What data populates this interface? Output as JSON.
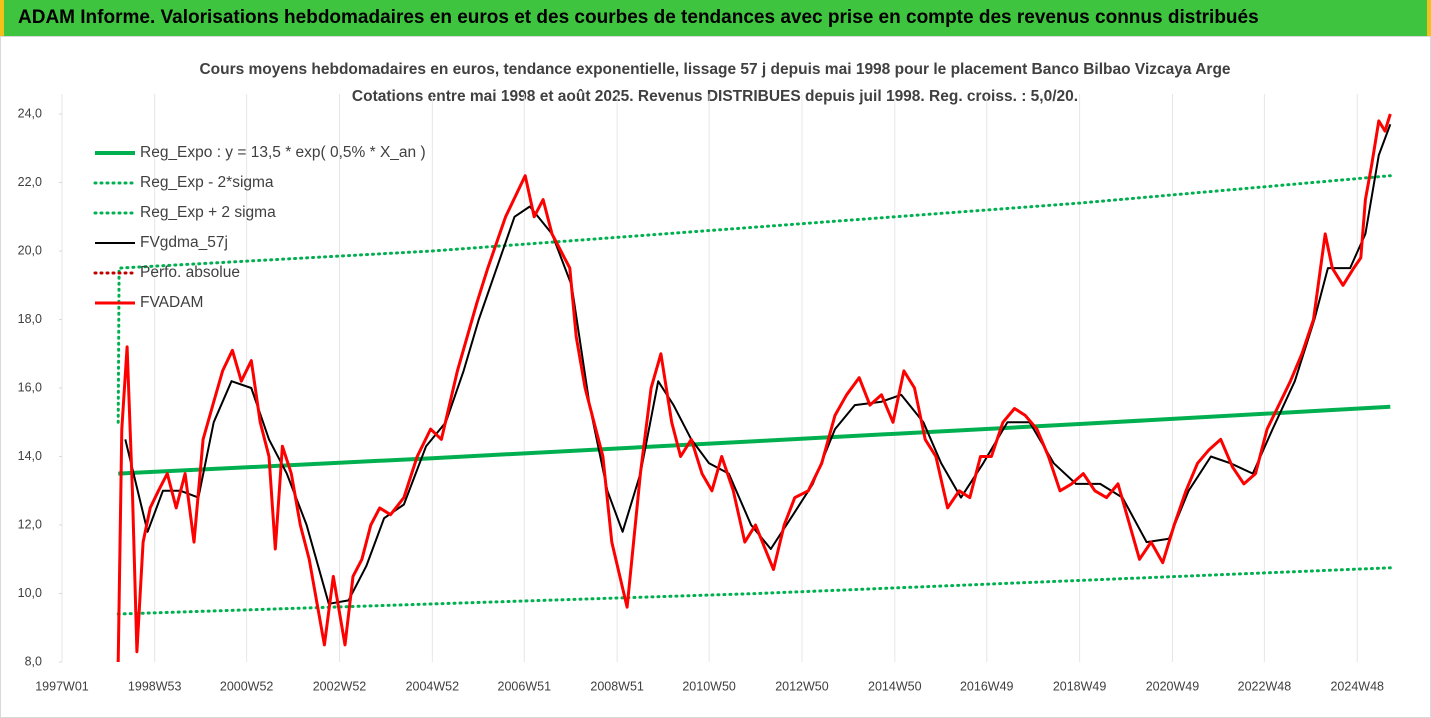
{
  "header": {
    "title": "ADAM Informe. Valorisations hebdomadaires en euros et des courbes de tendances avec prise en compte des revenus connus distribués"
  },
  "chart_data": {
    "type": "line",
    "title": "Cours moyens hebdomadaires en euros, tendance exponentielle, lissage 57 j depuis mai 1998 pour le placement Banco Bilbao Vizcaya Arge",
    "subtitle": "Cotations entre mai 1998 et août 2025. Revenus DISTRIBUES depuis juil 1998. Reg. croiss. : 5,0/20.",
    "xlim": [
      "1997W01",
      "2025W36"
    ],
    "xticks": [
      "1997W01",
      "1998W53",
      "2000W52",
      "2002W52",
      "2004W52",
      "2006W51",
      "2008W51",
      "2010W50",
      "2012W50",
      "2014W50",
      "2016W49",
      "2018W49",
      "2020W49",
      "2022W48",
      "2024W48"
    ],
    "ylim": [
      8,
      24
    ],
    "yticks": [
      {
        "value": 8,
        "label": "8,0"
      },
      {
        "value": 10,
        "label": "10,0"
      },
      {
        "value": 12,
        "label": "12,0"
      },
      {
        "value": 14,
        "label": "14,0"
      },
      {
        "value": 16,
        "label": "16,0"
      },
      {
        "value": 18,
        "label": "18,0"
      },
      {
        "value": 20,
        "label": "20,0"
      },
      {
        "value": 22,
        "label": "22,0"
      },
      {
        "value": 24,
        "label": "24,0"
      }
    ],
    "grid": "x",
    "legend": "upper left",
    "series": [
      {
        "name": "Reg_Expo : y = 13,5 * exp( 0,5% *  X_an )",
        "color": "#00b050",
        "style": "solid",
        "x": [
          "1998W12",
          "2004W52",
          "2011W52",
          "2018W49",
          "2025W33"
        ],
        "values": [
          13.5,
          13.95,
          14.45,
          14.95,
          15.45
        ]
      },
      {
        "name": "Reg_Exp - 2*sigma",
        "color": "#00b050",
        "style": "dotted",
        "x": [
          "1998W12",
          "2011W52",
          "2025W33"
        ],
        "values": [
          9.4,
          10.0,
          10.75
        ]
      },
      {
        "name": "Reg_Exp + 2 sigma",
        "color": "#00b050",
        "style": "dotted",
        "x": [
          "1998W12",
          "1998W13",
          "2004W52",
          "2011W52",
          "2018W49",
          "2025W33"
        ],
        "values": [
          15.0,
          19.5,
          20.0,
          20.7,
          21.4,
          22.2
        ]
      },
      {
        "name": "FVgdma_57j",
        "color": "#000000",
        "style": "solid",
        "x": [
          "1998W20",
          "1998W45",
          "1999W10",
          "1999W30",
          "1999W50",
          "2000W15",
          "2000W35",
          "2001W05",
          "2001W25",
          "2001W45",
          "2002W15",
          "2002W40",
          "2003W10",
          "2003W30",
          "2003W50",
          "2004W20",
          "2004W45",
          "2005W15",
          "2005W35",
          "2005W52",
          "2006W20",
          "2006W40",
          "2007W05",
          "2007W30",
          "2007W52",
          "2008W20",
          "2008W40",
          "2009W05",
          "2009W25",
          "2009W45",
          "2010W10",
          "2010W30",
          "2010W50",
          "2011W20",
          "2011W45",
          "2012W15",
          "2012W40",
          "2013W10",
          "2013W35",
          "2014W05",
          "2014W35",
          "2015W05",
          "2015W30",
          "2015W50",
          "2016W20",
          "2016W45",
          "2017W20",
          "2017W45",
          "2018W20",
          "2018W45",
          "2019W20",
          "2019W45",
          "2020W20",
          "2020W45",
          "2021W15",
          "2021W40",
          "2022W10",
          "2022W35",
          "2023W05",
          "2023W30",
          "2023W52",
          "2024W15",
          "2024W40",
          "2025W05",
          "2025W20",
          "2025W33"
        ],
        "values": [
          14.5,
          11.8,
          13.0,
          13.0,
          12.8,
          15.0,
          16.2,
          16.0,
          14.5,
          13.5,
          12.0,
          9.7,
          9.8,
          10.8,
          12.2,
          12.6,
          14.3,
          15.0,
          16.5,
          18.0,
          19.5,
          21.0,
          21.3,
          20.5,
          19.0,
          15.5,
          13.0,
          11.8,
          13.5,
          16.2,
          15.5,
          14.5,
          13.8,
          13.5,
          12.0,
          11.3,
          12.3,
          13.2,
          14.8,
          15.5,
          15.6,
          15.8,
          15.0,
          13.8,
          12.8,
          13.8,
          15.0,
          15.0,
          13.8,
          13.2,
          13.2,
          12.8,
          11.5,
          11.6,
          13.0,
          14.0,
          13.8,
          13.5,
          14.8,
          16.2,
          18.0,
          19.5,
          19.5,
          20.5,
          22.8,
          23.7
        ]
      },
      {
        "name": "Perfo. absolue",
        "color": "#c00000",
        "style": "dotted",
        "x": [],
        "values": []
      },
      {
        "name": "FVADAM",
        "color": "#ff0000",
        "style": "thick",
        "x": [
          "1998W12",
          "1998W16",
          "1998W22",
          "1998W28",
          "1998W33",
          "1998W40",
          "1998W48",
          "1999W05",
          "1999W15",
          "1999W25",
          "1999W35",
          "1999W45",
          "2000W03",
          "2000W14",
          "2000W25",
          "2000W36",
          "2000W46",
          "2001W05",
          "2001W15",
          "2001W25",
          "2001W32",
          "2001W40",
          "2001W50",
          "2002W08",
          "2002W18",
          "2002W35",
          "2002W45",
          "2003W06",
          "2003W15",
          "2003W25",
          "2003W35",
          "2003W45",
          "2004W05",
          "2004W20",
          "2004W35",
          "2004W50",
          "2005W10",
          "2005W28",
          "2005W50",
          "2006W10",
          "2006W30",
          "2006W52",
          "2007W10",
          "2007W20",
          "2007W30",
          "2007W40",
          "2007W50",
          "2008W05",
          "2008W15",
          "2008W25",
          "2008W35",
          "2008W45",
          "2009W10",
          "2009W25",
          "2009W37",
          "2009W48",
          "2010W08",
          "2010W18",
          "2010W30",
          "2010W42",
          "2011W01",
          "2011W12",
          "2011W25",
          "2011W38",
          "2011W50",
          "2012W18",
          "2012W30",
          "2012W42",
          "2013W05",
          "2013W20",
          "2013W35",
          "2013W48",
          "2014W10",
          "2014W22",
          "2014W35",
          "2014W48",
          "2015W08",
          "2015W20",
          "2015W32",
          "2015W44",
          "2016W05",
          "2016W18",
          "2016W30",
          "2016W42",
          "2017W02",
          "2017W15",
          "2017W28",
          "2017W40",
          "2018W01",
          "2018W14",
          "2018W27",
          "2018W40",
          "2019W01",
          "2019W14",
          "2019W27",
          "2019W40",
          "2020W12",
          "2020W25",
          "2020W38",
          "2020W51",
          "2021W12",
          "2021W25",
          "2021W38",
          "2021W51",
          "2022W12",
          "2022W25",
          "2022W38",
          "2022W51",
          "2023W12",
          "2023W25",
          "2023W38",
          "2023W51",
          "2024W12",
          "2024W20",
          "2024W32",
          "2024W44",
          "2024W52",
          "2025W05",
          "2025W12",
          "2025W20",
          "2025W27",
          "2025W33"
        ],
        "values": [
          8.0,
          14.8,
          17.2,
          13.0,
          8.3,
          11.5,
          12.5,
          13.0,
          13.5,
          12.5,
          13.5,
          11.5,
          14.5,
          15.5,
          16.5,
          17.1,
          16.2,
          16.8,
          15.0,
          14.0,
          11.3,
          14.3,
          13.5,
          12.0,
          11.0,
          8.5,
          10.5,
          8.5,
          10.5,
          11.0,
          12.0,
          12.5,
          12.3,
          12.8,
          14.0,
          14.8,
          14.5,
          16.5,
          18.5,
          19.5,
          21.0,
          22.2,
          21.0,
          21.5,
          20.5,
          20.0,
          19.5,
          17.5,
          16.0,
          15.0,
          14.0,
          11.5,
          9.6,
          13.5,
          16.0,
          17.0,
          15.0,
          14.0,
          14.5,
          13.5,
          13.0,
          14.0,
          13.0,
          11.5,
          12.0,
          10.7,
          12.0,
          12.8,
          13.0,
          13.8,
          15.2,
          15.8,
          16.3,
          15.5,
          15.8,
          15.0,
          16.5,
          16.0,
          14.5,
          14.0,
          12.5,
          13.0,
          12.8,
          14.0,
          14.0,
          15.0,
          15.4,
          15.2,
          14.8,
          14.0,
          13.0,
          13.2,
          13.5,
          13.0,
          12.8,
          13.2,
          11.0,
          11.5,
          10.9,
          12.0,
          13.0,
          13.8,
          14.2,
          14.5,
          13.7,
          13.2,
          13.5,
          14.8,
          15.5,
          16.2,
          17.0,
          18.0,
          20.5,
          19.5,
          19.0,
          19.5,
          19.8,
          21.5,
          22.5,
          23.8,
          23.5,
          24.0
        ]
      }
    ]
  }
}
